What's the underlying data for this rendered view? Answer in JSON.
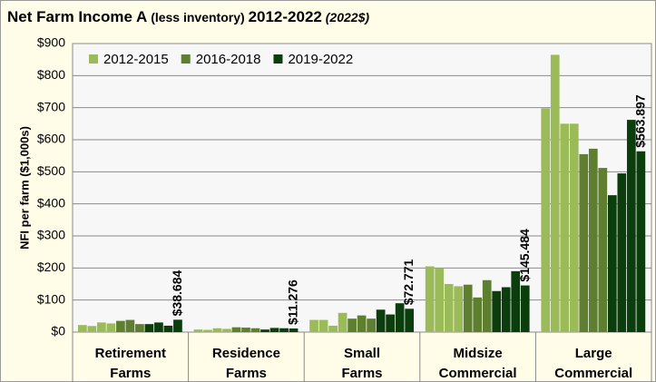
{
  "chart_data": {
    "type": "bar",
    "title": [
      "Net Farm Income A",
      "(less inventory)",
      "2012-2022",
      "(2022$)"
    ],
    "y_label": "NFI per farm ($1,000s)",
    "categories": [
      [
        "Retirement",
        "Farms"
      ],
      [
        "Residence",
        "Farms"
      ],
      [
        "Small",
        "Farms"
      ],
      [
        "Midsize",
        "Commercial"
      ],
      [
        "Large",
        "Commercial"
      ]
    ],
    "series": [
      {
        "name": "2012-2015",
        "color": "#9bbb59",
        "values": [
          [
            22,
            19,
            30,
            27
          ],
          [
            8,
            7,
            12,
            10
          ],
          [
            38,
            38,
            20,
            60
          ],
          [
            205,
            198,
            150,
            143
          ],
          [
            698,
            865,
            650,
            650
          ]
        ]
      },
      {
        "name": "2016-2018",
        "color": "#5f7f30",
        "values": [
          [
            35,
            38,
            25
          ],
          [
            15,
            14,
            12
          ],
          [
            42,
            52,
            42
          ],
          [
            148,
            108,
            162
          ],
          [
            555,
            572,
            512
          ]
        ]
      },
      {
        "name": "2019-2022",
        "color": "#0c3d0c",
        "values": [
          [
            25,
            30,
            20,
            38.684
          ],
          [
            8,
            13,
            12,
            11.276
          ],
          [
            70,
            55,
            90,
            72.771
          ],
          [
            128,
            140,
            190,
            145.484
          ],
          [
            427,
            495,
            662,
            563.897
          ]
        ],
        "value_labels": [
          [
            null,
            null,
            null,
            "$38.684"
          ],
          [
            null,
            null,
            null,
            "$11.276"
          ],
          [
            null,
            null,
            null,
            "$72.771"
          ],
          [
            null,
            null,
            null,
            "$145.484"
          ],
          [
            null,
            null,
            null,
            "$563.897"
          ]
        ]
      }
    ],
    "ylim": [
      0,
      900
    ],
    "yticks": [
      {
        "value": 0,
        "label": "$0"
      },
      {
        "value": 100,
        "label": "$100"
      },
      {
        "value": 200,
        "label": "$200"
      },
      {
        "value": 300,
        "label": "$300"
      },
      {
        "value": 400,
        "label": "$400"
      },
      {
        "value": 500,
        "label": "$500"
      },
      {
        "value": 600,
        "label": "$600"
      },
      {
        "value": 700,
        "label": "$700"
      },
      {
        "value": 800,
        "label": "$800"
      },
      {
        "value": 900,
        "label": "$900"
      }
    ],
    "grid": true,
    "legend": "top-left"
  }
}
